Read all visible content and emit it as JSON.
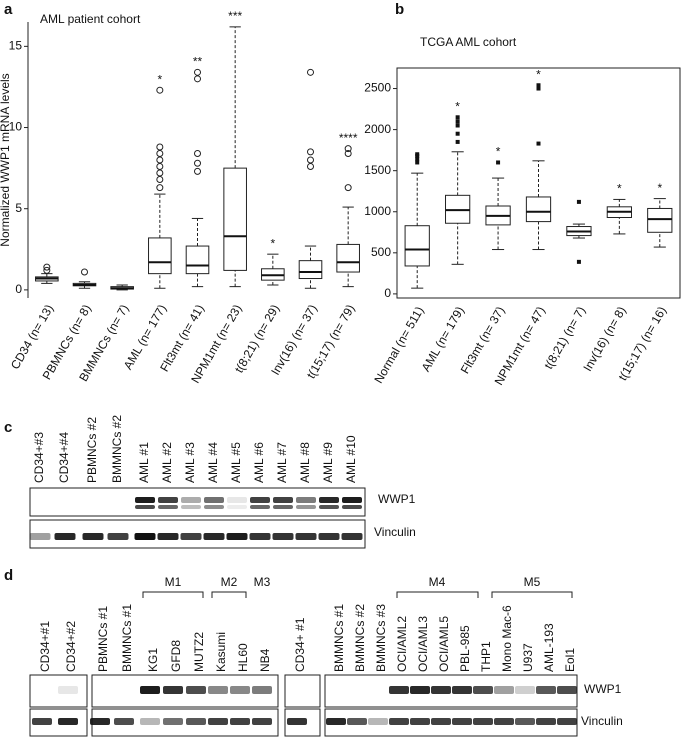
{
  "panel_labels": [
    "a",
    "b",
    "c",
    "d"
  ],
  "chart_data": [
    {
      "type": "boxplot",
      "title": "AML patient cohort",
      "y_label": "Normalized WWP1 mRNA levels",
      "categories": [
        "CD34 (n= 13)",
        "PBMNCs (n= 8)",
        "BMMNCs (n= 7)",
        "AML (n= 177)",
        "Flt3mt (n= 41)",
        "NPM1mt (n= 23)",
        "t(8;21) (n= 29)",
        "Inv(16) (n= 37)",
        "t(15;17) (n= 79)"
      ],
      "boxes": [
        {
          "low": 0.4,
          "q1": 0.55,
          "median": 0.7,
          "q3": 0.8,
          "high": 1.0,
          "outliers": [
            1.2,
            1.4
          ]
        },
        {
          "low": 0.1,
          "q1": 0.25,
          "median": 0.3,
          "q3": 0.4,
          "high": 0.5,
          "outliers": [
            1.1
          ]
        },
        {
          "low": 0.0,
          "q1": 0.05,
          "median": 0.1,
          "q3": 0.2,
          "high": 0.3,
          "outliers": []
        },
        {
          "low": 0.1,
          "q1": 1.0,
          "median": 1.7,
          "q3": 3.2,
          "high": 5.9,
          "outliers": [
            6.3,
            6.8,
            7.2,
            7.6,
            8.0,
            8.4,
            8.8,
            12.3
          ]
        },
        {
          "low": 0.2,
          "q1": 1.0,
          "median": 1.5,
          "q3": 2.7,
          "high": 4.4,
          "outliers": [
            7.3,
            7.8,
            8.4,
            13.0,
            13.4
          ]
        },
        {
          "low": 0.2,
          "q1": 1.2,
          "median": 3.3,
          "q3": 7.5,
          "high": 16.2,
          "outliers": []
        },
        {
          "low": 0.3,
          "q1": 0.6,
          "median": 0.9,
          "q3": 1.3,
          "high": 2.2,
          "outliers": []
        },
        {
          "low": 0.1,
          "q1": 0.7,
          "median": 1.1,
          "q3": 1.8,
          "high": 2.7,
          "outliers": [
            7.6,
            8.0,
            8.5,
            13.4
          ]
        },
        {
          "low": 0.2,
          "q1": 1.1,
          "median": 1.7,
          "q3": 2.8,
          "high": 5.1,
          "outliers": [
            6.3,
            8.4,
            8.7
          ]
        }
      ],
      "significance": [
        null,
        null,
        null,
        "*",
        "**",
        "***",
        "*",
        null,
        "****"
      ],
      "ylim": [
        -0.5,
        16.5
      ],
      "yticks": [
        0,
        5,
        10,
        15
      ],
      "frame": false
    },
    {
      "type": "boxplot",
      "title": "TCGA AML cohort",
      "categories": [
        "Normal (n= 511)",
        "AML (n= 179)",
        "Flt3mt (n= 37)",
        "NPM1mt (n= 47)",
        "t(8;21) (n= 7)",
        "Inv(16) (n= 8)",
        "t(15;17) (n= 16)"
      ],
      "boxes": [
        {
          "low": 70,
          "q1": 340,
          "median": 540,
          "q3": 830,
          "high": 1470,
          "outliers": [
            1600,
            1640,
            1680,
            1700
          ]
        },
        {
          "low": 360,
          "q1": 860,
          "median": 1020,
          "q3": 1200,
          "high": 1730,
          "outliers": [
            1850,
            1950,
            2050,
            2100,
            2150
          ]
        },
        {
          "low": 540,
          "q1": 840,
          "median": 950,
          "q3": 1070,
          "high": 1410,
          "outliers": [
            1600
          ]
        },
        {
          "low": 540,
          "q1": 880,
          "median": 1000,
          "q3": 1180,
          "high": 1620,
          "outliers": [
            1830,
            2500,
            2540
          ]
        },
        {
          "low": 680,
          "q1": 710,
          "median": 760,
          "q3": 820,
          "high": 850,
          "outliers": [
            390,
            1120
          ]
        },
        {
          "low": 730,
          "q1": 930,
          "median": 1000,
          "q3": 1060,
          "high": 1150,
          "outliers": []
        },
        {
          "low": 570,
          "q1": 750,
          "median": 910,
          "q3": 1040,
          "high": 1160,
          "outliers": []
        }
      ],
      "significance": [
        null,
        "*",
        "*",
        "*",
        null,
        "*",
        "*"
      ],
      "ylim": [
        -50,
        2750
      ],
      "yticks": [
        0,
        500,
        1000,
        1500,
        2000,
        2500
      ],
      "frame": true
    }
  ],
  "blot_c": {
    "lanes": [
      "CD34+#3",
      "CD34+#4",
      "PBMNCs #2",
      "BMMNCs #2",
      "AML #1",
      "AML #2",
      "AML #3",
      "AML #4",
      "AML #5",
      "AML #6",
      "AML #7",
      "AML #8",
      "AML #9",
      "AML #10"
    ],
    "rows": [
      "WWP1",
      "Vinculin"
    ]
  },
  "blot_d": {
    "lanes": [
      "CD34+#1",
      "CD34+#2",
      "PBMNCs #1",
      "BMMNCs #1",
      "KG1",
      "GFD8",
      "MUTZ2",
      "Kasumi",
      "HL60",
      "NB4",
      "CD34+ #1",
      "BMMNCs #1",
      "BMMNCs #2",
      "BMMNCs #3",
      "OCI/AML2",
      "OCI/AML3",
      "OCI/AML5",
      "PBL-985",
      "THP1",
      "Mono Mac-6",
      "U937",
      "AML-193",
      "Eol1"
    ],
    "groups": [
      "M1",
      "M2",
      "M3",
      "M4",
      "M5"
    ],
    "rows": [
      "WWP1",
      "Vinculin"
    ]
  }
}
